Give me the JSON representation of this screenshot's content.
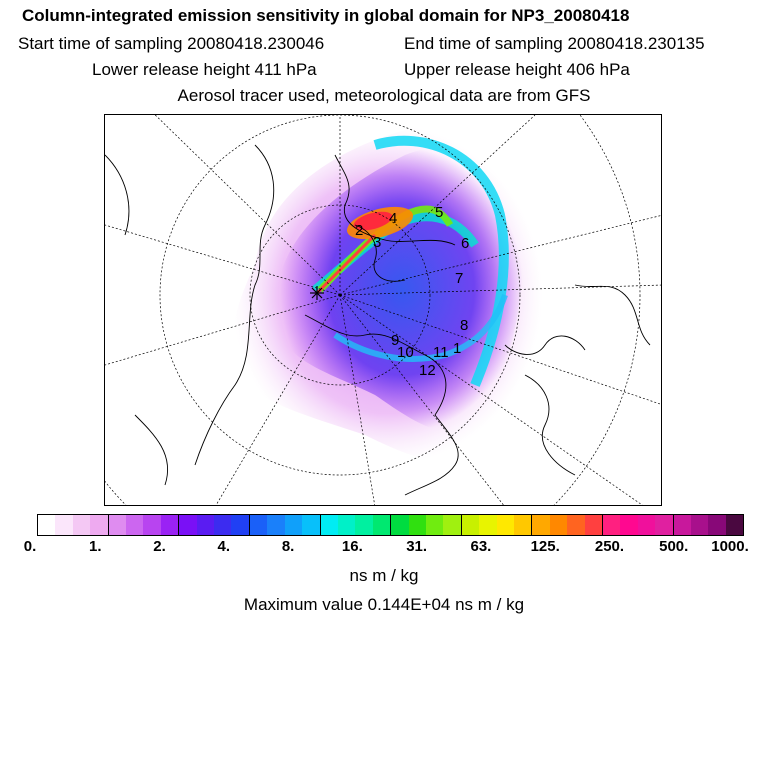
{
  "header": {
    "title": "Column-integrated emission sensitivity in global domain for NP3_20080418",
    "start_time": "Start time of sampling 20080418.230046",
    "end_time": "End time of sampling 20080418.230135",
    "lower_height": "Lower release height  411 hPa",
    "upper_height": "Upper release height  406 hPa",
    "tracer_info": "Aerosol tracer used, meteorological data are from GFS"
  },
  "map": {
    "projection": "polar stereographic",
    "labels": [
      "1",
      "2",
      "3",
      "4",
      "5",
      "6",
      "7",
      "8",
      "9",
      "10",
      "11",
      "12"
    ]
  },
  "colorbar": {
    "colors": [
      "#ffffff",
      "#fbe6fb",
      "#f4c8f4",
      "#eeaaf0",
      "#df8cf0",
      "#cc66f0",
      "#b844f0",
      "#9a22f4",
      "#7a10f6",
      "#5a1cf2",
      "#3c2cf0",
      "#2040f4",
      "#1a60f8",
      "#1a80fa",
      "#10a0fa",
      "#08c0fa",
      "#00ecf4",
      "#00f0c8",
      "#00f0a0",
      "#00e870",
      "#00dc40",
      "#30e010",
      "#70ec10",
      "#a0f010",
      "#c8f000",
      "#e8f400",
      "#ffe800",
      "#ffc800",
      "#ffa800",
      "#ff8800",
      "#ff6420",
      "#ff4040",
      "#ff2080",
      "#ff0890",
      "#f0109c",
      "#e020a0",
      "#c8189c",
      "#a8108c",
      "#880878",
      "#4a0840"
    ],
    "ticks": [
      "0.",
      "1.",
      "2.",
      "4.",
      "8.",
      "16.",
      "31.",
      "63.",
      "125.",
      "250.",
      "500.",
      "1000."
    ],
    "units": "ns m / kg"
  },
  "footer": {
    "max_value": "Maximum value  0.144E+04 ns m / kg"
  }
}
